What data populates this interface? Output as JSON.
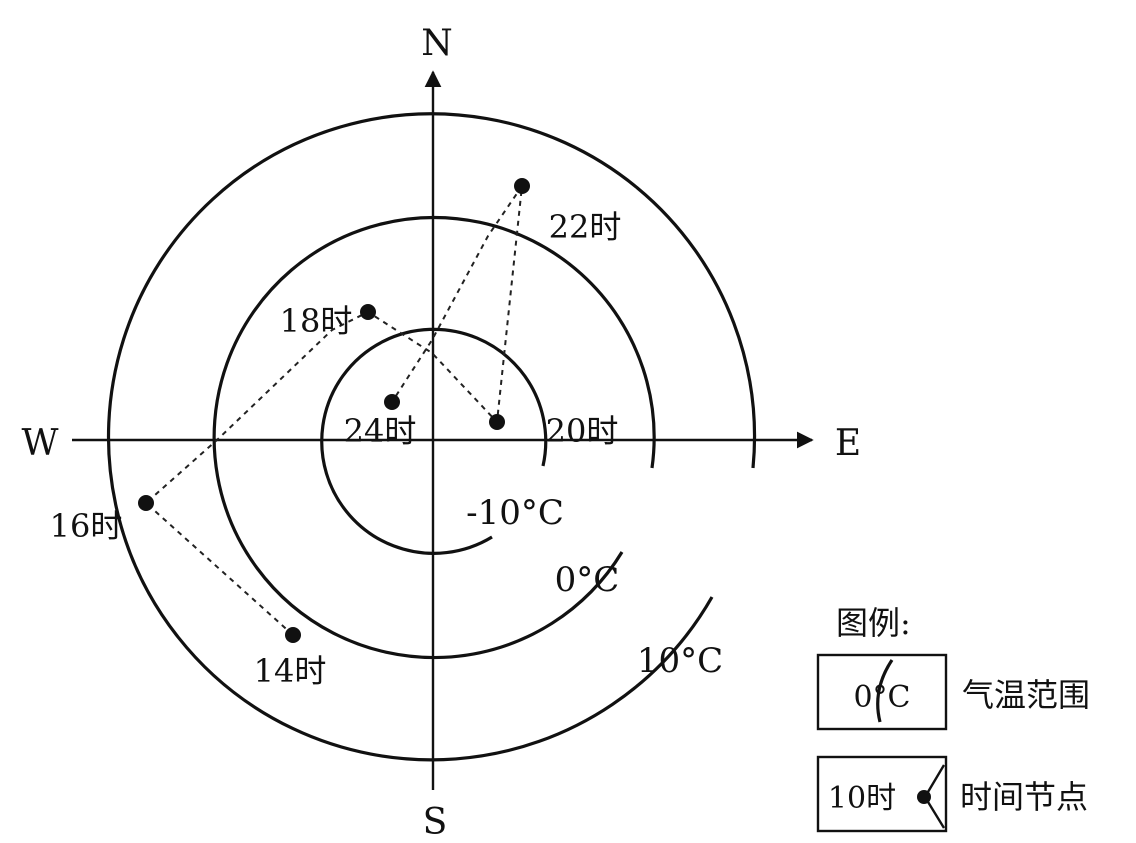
{
  "directions": {
    "north": "N",
    "south": "S",
    "east": "E",
    "west": "W"
  },
  "rings": [
    {
      "label": "-10°C",
      "temperature_c": -10
    },
    {
      "label": "0°C",
      "temperature_c": 0
    },
    {
      "label": "10°C",
      "temperature_c": 10
    }
  ],
  "time_nodes": [
    {
      "label": "14时"
    },
    {
      "label": "16时"
    },
    {
      "label": "18时"
    },
    {
      "label": "20时"
    },
    {
      "label": "22时"
    },
    {
      "label": "24时"
    }
  ],
  "legend": {
    "title": "图例:",
    "temperature_sample": "0°C",
    "temperature_desc": "气温范围",
    "time_sample": "10时",
    "time_desc": "时间节点"
  }
}
